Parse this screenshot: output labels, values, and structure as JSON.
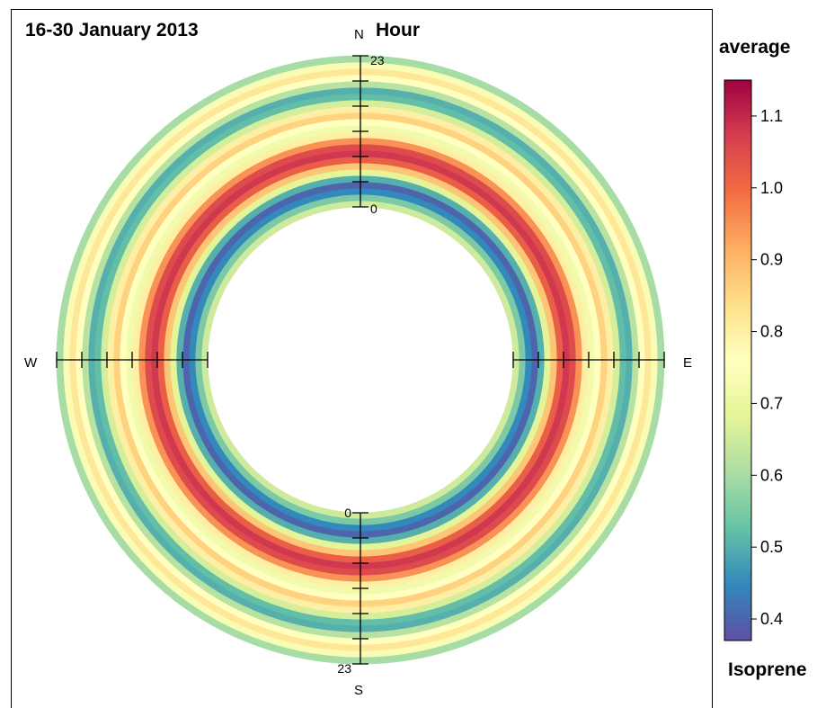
{
  "chart_data": {
    "type": "polar-annulus",
    "title": "16-30 January 2013",
    "radial_label": "Hour",
    "radial_ticks": [
      "0",
      "23"
    ],
    "directions": [
      "N",
      "E",
      "S",
      "W"
    ],
    "colorbar_title": "average",
    "colorbar_variable": "Isoprene",
    "colorbar_ticks": [
      0.4,
      0.5,
      0.6,
      0.7,
      0.8,
      0.9,
      1.0,
      1.1
    ],
    "colorbar_tick_labels": [
      "0.4",
      "0.5",
      "0.6",
      "0.7",
      "0.8",
      "0.9",
      "1.0",
      "1.1"
    ],
    "color_range": [
      0.37,
      1.15
    ],
    "colorscale": [
      "#5e4fa2",
      "#3288bd",
      "#66c2a5",
      "#abdda4",
      "#e6f598",
      "#ffffbf",
      "#fee08b",
      "#fdae61",
      "#f46d43",
      "#d53e4f",
      "#9e0142"
    ],
    "hourly_average": [
      {
        "hour": 0,
        "value": 0.65
      },
      {
        "hour": 1,
        "value": 0.55
      },
      {
        "hour": 2,
        "value": 0.45
      },
      {
        "hour": 3,
        "value": 0.4
      },
      {
        "hour": 4,
        "value": 0.5
      },
      {
        "hour": 5,
        "value": 0.68
      },
      {
        "hour": 6,
        "value": 0.88
      },
      {
        "hour": 7,
        "value": 1.02
      },
      {
        "hour": 8,
        "value": 1.08
      },
      {
        "hour": 9,
        "value": 1.05
      },
      {
        "hour": 10,
        "value": 0.95
      },
      {
        "hour": 11,
        "value": 0.8
      },
      {
        "hour": 12,
        "value": 0.72
      },
      {
        "hour": 13,
        "value": 0.76
      },
      {
        "hour": 14,
        "value": 0.86
      },
      {
        "hour": 15,
        "value": 0.8
      },
      {
        "hour": 16,
        "value": 0.66
      },
      {
        "hour": 17,
        "value": 0.52
      },
      {
        "hour": 18,
        "value": 0.5
      },
      {
        "hour": 19,
        "value": 0.62
      },
      {
        "hour": 20,
        "value": 0.76
      },
      {
        "hour": 21,
        "value": 0.82
      },
      {
        "hour": 22,
        "value": 0.74
      },
      {
        "hour": 23,
        "value": 0.6
      }
    ]
  }
}
